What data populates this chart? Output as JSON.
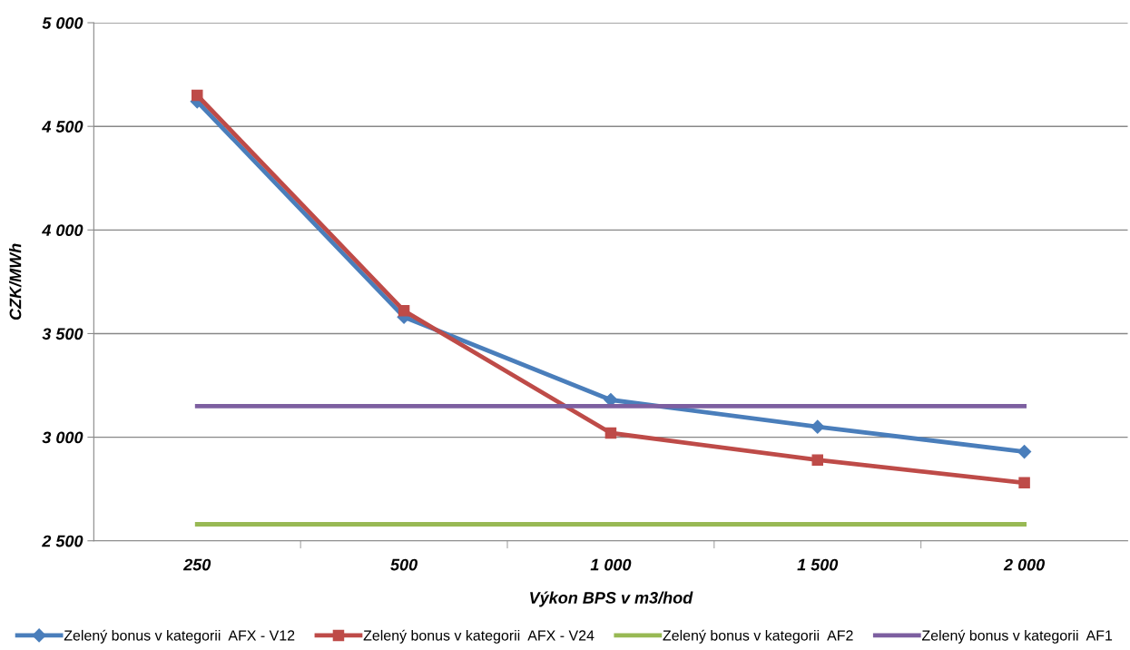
{
  "chart_data": {
    "type": "line",
    "xlabel": "Výkon BPS v m3/hod",
    "ylabel": "CZK/MWh",
    "categories": [
      "250",
      "500",
      "1 000",
      "1 500",
      "2 000"
    ],
    "series": [
      {
        "name": "Zelený bonus v kategorii  AFX - V12",
        "color": "#4a7ebb",
        "marker": "diamond",
        "values": [
          4620,
          3580,
          3180,
          3050,
          2930
        ]
      },
      {
        "name": "Zelený bonus v kategorii  AFX - V24",
        "color": "#be4b48",
        "marker": "square",
        "values": [
          4650,
          3610,
          3020,
          2890,
          2780
        ]
      },
      {
        "name": "Zelený bonus v kategorii  AF2",
        "color": "#98b954",
        "marker": "none",
        "values": [
          2580,
          2580,
          2580,
          2580,
          2580
        ]
      },
      {
        "name": "Zelený bonus v kategorii  AF1",
        "color": "#7d5fa0",
        "marker": "none",
        "values": [
          3150,
          3150,
          3150,
          3150,
          3150
        ]
      }
    ],
    "ylim": [
      2500,
      5000
    ],
    "yticks": [
      {
        "value": 2500,
        "label": "2 500"
      },
      {
        "value": 3000,
        "label": "3 000"
      },
      {
        "value": 3500,
        "label": "3 500"
      },
      {
        "value": 4000,
        "label": "4 000"
      },
      {
        "value": 4500,
        "label": "4 500"
      },
      {
        "value": 5000,
        "label": "5 000"
      }
    ],
    "grid": "y",
    "legend": "bottom",
    "line_style": "solid"
  }
}
